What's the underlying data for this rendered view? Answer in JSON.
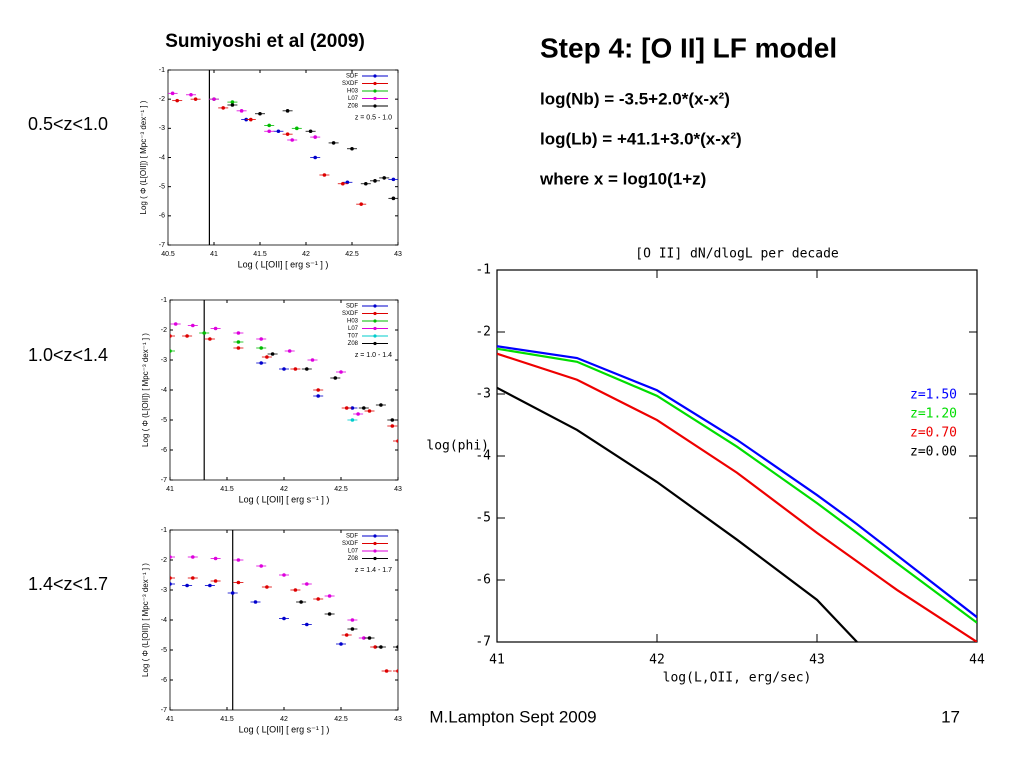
{
  "left_title": "Sumiyoshi et al (2009)",
  "row_labels": [
    "0.5<z<1.0",
    "1.0<z<1.4",
    "1.4<z<1.7"
  ],
  "slide_title": "Step 4: [O II] LF model",
  "equations": [
    "log(Nb) = -3.5+2.0*(x-x²)",
    "log(Lb) = +41.1+3.0*(x-x²)",
    "where x = log10(1+z)"
  ],
  "footer": "M.Lampton Sept 2009",
  "page_number": "17",
  "chart_data": [
    {
      "type": "scatter",
      "annotation": "z = 0.5 - 1.0",
      "x_label": "Log ( L[OII] [ erg s⁻¹ ] )",
      "y_label": "Log ( Φ (L[OII]) [ Mpc⁻³ dex⁻¹ ] )",
      "xlim": [
        40.5,
        43
      ],
      "xticks": [
        40.5,
        41,
        41.5,
        42,
        42.5,
        43
      ],
      "ylim": [
        -7,
        -1
      ],
      "yticks": [
        -1,
        -2,
        -3,
        -4,
        -5,
        -6,
        -7
      ],
      "vline": 40.95,
      "series": [
        {
          "name": "SDF",
          "color": "#0000cc",
          "x": [
            41.35,
            41.7,
            42.1,
            42.45,
            42.95
          ],
          "values": [
            -2.7,
            -3.1,
            -4.0,
            -4.85,
            -4.75
          ]
        },
        {
          "name": "SXDF",
          "color": "#dd0000",
          "x": [
            40.6,
            40.8,
            41.1,
            41.4,
            41.8,
            42.2,
            42.4,
            42.6
          ],
          "values": [
            -2.05,
            -2.0,
            -2.3,
            -2.7,
            -3.2,
            -4.6,
            -4.9,
            -5.6
          ]
        },
        {
          "name": "H03",
          "color": "#00bb00",
          "x": [
            41.0,
            41.2,
            41.6,
            41.9
          ],
          "values": [
            -2.0,
            -2.1,
            -2.9,
            -3.0
          ]
        },
        {
          "name": "L07",
          "color": "#dd00dd",
          "x": [
            40.55,
            40.75,
            41.0,
            41.3,
            41.6,
            41.85,
            42.1
          ],
          "values": [
            -1.8,
            -1.85,
            -2.0,
            -2.4,
            -3.1,
            -3.4,
            -3.3
          ]
        },
        {
          "name": "Z08",
          "color": "#000000",
          "x": [
            41.2,
            41.5,
            41.8,
            42.05,
            42.3,
            42.5,
            42.65,
            42.75,
            42.85,
            42.95
          ],
          "values": [
            -2.2,
            -2.5,
            -2.4,
            -3.1,
            -3.5,
            -3.7,
            -4.9,
            -4.8,
            -4.7,
            -5.4
          ]
        }
      ]
    },
    {
      "type": "scatter",
      "annotation": "z = 1.0 - 1.4",
      "x_label": "Log ( L[OII] [ erg s⁻¹ ] )",
      "y_label": "Log ( Φ (L[OII]) [ Mpc⁻³ dex⁻¹ ] )",
      "xlim": [
        41,
        43
      ],
      "xticks": [
        41,
        41.5,
        42,
        42.5,
        43
      ],
      "ylim": [
        -7,
        -1
      ],
      "yticks": [
        -1,
        -2,
        -3,
        -4,
        -5,
        -6,
        -7
      ],
      "vline": 41.3,
      "series": [
        {
          "name": "SDF",
          "color": "#0000cc",
          "x": [
            41.8,
            42.0,
            42.3,
            42.6
          ],
          "values": [
            -3.1,
            -3.3,
            -4.2,
            -4.6
          ]
        },
        {
          "name": "SXDF",
          "color": "#dd0000",
          "x": [
            41.0,
            41.15,
            41.35,
            41.6,
            41.85,
            42.1,
            42.3,
            42.55,
            42.75,
            42.95,
            43.0
          ],
          "values": [
            -2.2,
            -2.2,
            -2.3,
            -2.6,
            -2.9,
            -3.3,
            -4.0,
            -4.6,
            -4.7,
            -5.2,
            -5.7
          ]
        },
        {
          "name": "H03",
          "color": "#00bb00",
          "x": [
            41.0,
            41.3,
            41.6,
            41.8
          ],
          "values": [
            -2.7,
            -2.1,
            -2.4,
            -2.6
          ]
        },
        {
          "name": "L07",
          "color": "#dd00dd",
          "x": [
            41.05,
            41.2,
            41.4,
            41.6,
            41.8,
            42.05,
            42.25,
            42.5,
            42.65
          ],
          "values": [
            -1.8,
            -1.85,
            -1.95,
            -2.1,
            -2.3,
            -2.7,
            -3.0,
            -3.4,
            -4.8
          ]
        },
        {
          "name": "T07",
          "color": "#00cccc",
          "x": [
            42.6
          ],
          "values": [
            -5.0
          ]
        },
        {
          "name": "Z08",
          "color": "#000000",
          "x": [
            41.9,
            42.2,
            42.45,
            42.7,
            42.85,
            42.95
          ],
          "values": [
            -2.8,
            -3.3,
            -3.6,
            -4.6,
            -4.5,
            -5.0
          ]
        }
      ]
    },
    {
      "type": "scatter",
      "annotation": "z = 1.4 - 1.7",
      "x_label": "Log ( L[OII] [ erg s⁻¹ ] )",
      "y_label": "Log ( Φ (L[OII]) [ Mpc⁻³ dex⁻¹ ] )",
      "xlim": [
        41,
        43
      ],
      "xticks": [
        41,
        41.5,
        42,
        42.5,
        43
      ],
      "ylim": [
        -7,
        -1
      ],
      "yticks": [
        -1,
        -2,
        -3,
        -4,
        -5,
        -6,
        -7
      ],
      "vline": 41.55,
      "series": [
        {
          "name": "SDF",
          "color": "#0000cc",
          "x": [
            41.0,
            41.15,
            41.35,
            41.55,
            41.75,
            42.0,
            42.2,
            42.5
          ],
          "values": [
            -2.8,
            -2.85,
            -2.85,
            -3.1,
            -3.4,
            -3.95,
            -4.15,
            -4.8
          ]
        },
        {
          "name": "SXDF",
          "color": "#dd0000",
          "x": [
            41.0,
            41.2,
            41.4,
            41.6,
            41.85,
            42.1,
            42.3,
            42.55,
            42.8,
            42.9,
            43.0
          ],
          "values": [
            -2.6,
            -2.6,
            -2.7,
            -2.75,
            -2.9,
            -3.0,
            -3.3,
            -4.5,
            -4.9,
            -5.7,
            -5.7
          ]
        },
        {
          "name": "L07",
          "color": "#dd00dd",
          "x": [
            41.0,
            41.2,
            41.4,
            41.6,
            41.8,
            42.0,
            42.2,
            42.4,
            42.6,
            42.7
          ],
          "values": [
            -1.9,
            -1.9,
            -1.95,
            -2.0,
            -2.2,
            -2.5,
            -2.8,
            -3.2,
            -4.0,
            -4.6
          ]
        },
        {
          "name": "Z08",
          "color": "#000000",
          "x": [
            42.15,
            42.4,
            42.6,
            42.75,
            42.85,
            43.0
          ],
          "values": [
            -3.4,
            -3.8,
            -4.3,
            -4.6,
            -4.9,
            -4.9
          ]
        }
      ]
    },
    {
      "type": "line",
      "title": "[O II] dN/dlogL per decade",
      "x_label": "log(L,OII, erg/sec)",
      "y_label": "log(phi)",
      "x": [
        41,
        41.5,
        42,
        42.5,
        43,
        43.25,
        43.5,
        44
      ],
      "xlim": [
        41,
        44
      ],
      "xticks": [
        41,
        42,
        43,
        44
      ],
      "ylim": [
        -7,
        -1
      ],
      "yticks": [
        -1,
        -2,
        -3,
        -4,
        -5,
        -6,
        -7
      ],
      "legend": "right",
      "series": [
        {
          "name": "z=1.50",
          "color": "#0000ff",
          "values": [
            -2.23,
            -2.42,
            -2.94,
            -3.74,
            -4.63,
            -5.1,
            -5.6,
            -6.6
          ]
        },
        {
          "name": "z=1.20",
          "color": "#00dd00",
          "values": [
            -2.27,
            -2.48,
            -3.03,
            -3.85,
            -4.76,
            -5.24,
            -5.73,
            -6.69
          ]
        },
        {
          "name": "z=0.70",
          "color": "#ee0000",
          "values": [
            -2.35,
            -2.77,
            -3.42,
            -4.27,
            -5.24,
            -5.7,
            -6.16,
            -7.0
          ]
        },
        {
          "name": "z=0.00",
          "color": "#000000",
          "values": [
            -2.9,
            -3.58,
            -4.42,
            -5.35,
            -6.32,
            -7.0,
            null,
            null
          ]
        }
      ]
    }
  ]
}
